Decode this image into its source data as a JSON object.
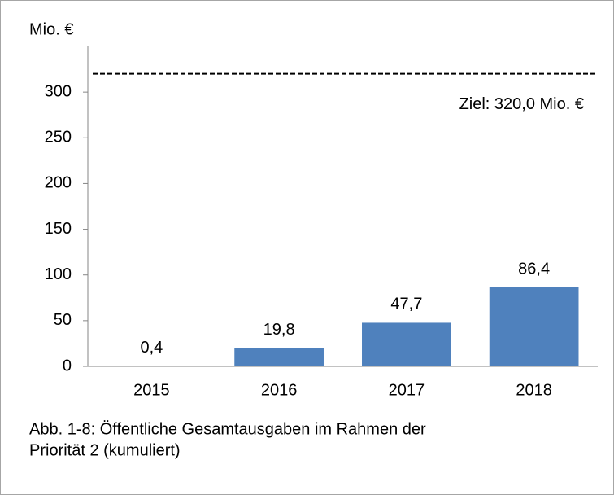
{
  "chart_data": {
    "type": "bar",
    "y_axis_label": "Mio. €",
    "categories": [
      "2015",
      "2016",
      "2017",
      "2018"
    ],
    "values": [
      0.4,
      19.8,
      47.7,
      86.4
    ],
    "value_labels": [
      "0,4",
      "19,8",
      "47,7",
      "86,4"
    ],
    "color": "#4f81bd",
    "ylim": [
      0,
      350
    ],
    "yticks": [
      0,
      50,
      100,
      150,
      200,
      250,
      300
    ],
    "target": {
      "value": 320,
      "label": "Ziel: 320,0 Mio. €"
    },
    "caption": [
      "Abb. 1-8: Öffentliche Gesamtausgaben im Rahmen der",
      "Priorität 2 (kumuliert)"
    ]
  }
}
